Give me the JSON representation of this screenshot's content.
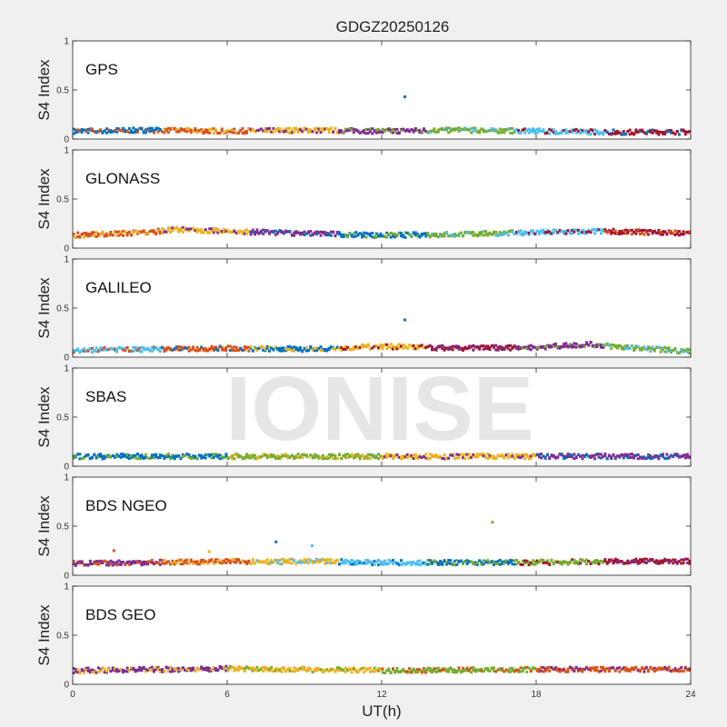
{
  "chart_data": {
    "type": "scatter",
    "title": "GDGZ20250126",
    "watermark": "IONISE",
    "xlabel": "UT(h)",
    "ylabel": "S4 Index",
    "xlim": [
      0,
      24
    ],
    "ylim": [
      0,
      1
    ],
    "x_ticks": [
      "0",
      "6",
      "12",
      "18",
      "24"
    ],
    "y_ticks": [
      "0",
      "0.5",
      "1"
    ],
    "grid": false,
    "colors": {
      "background": "#f0f0f0",
      "axes_background": "#ffffff",
      "axis": "#262626",
      "palette": [
        "#0072BD",
        "#D95319",
        "#EDB120",
        "#7E2F8E",
        "#77AC30",
        "#4DBEEE",
        "#A2142F"
      ]
    },
    "panels": [
      {
        "name": "GPS",
        "colors": [
          "#0072BD",
          "#D95319",
          "#EDB120",
          "#7E2F8E",
          "#77AC30",
          "#4DBEEE",
          "#A2142F"
        ],
        "baseline": [
          [
            0,
            0.08
          ],
          [
            3,
            0.09
          ],
          [
            6,
            0.08
          ],
          [
            9,
            0.09
          ],
          [
            12,
            0.08
          ],
          [
            15,
            0.09
          ],
          [
            18,
            0.08
          ],
          [
            21,
            0.07
          ],
          [
            24,
            0.07
          ]
        ],
        "outliers": [
          [
            12.9,
            0.43,
            "#0072BD"
          ]
        ]
      },
      {
        "name": "GLONASS",
        "colors": [
          "#D95319",
          "#EDB120",
          "#7E2F8E",
          "#0072BD",
          "#77AC30",
          "#4DBEEE",
          "#A2142F"
        ],
        "baseline": [
          [
            0,
            0.13
          ],
          [
            3,
            0.16
          ],
          [
            4,
            0.19
          ],
          [
            6,
            0.17
          ],
          [
            9,
            0.15
          ],
          [
            12,
            0.13
          ],
          [
            15,
            0.14
          ],
          [
            18,
            0.16
          ],
          [
            21,
            0.17
          ],
          [
            24,
            0.15
          ]
        ],
        "outliers": []
      },
      {
        "name": "GALILEO",
        "colors": [
          "#4DBEEE",
          "#D95319",
          "#0072BD",
          "#EDB120",
          "#A2142F",
          "#7E2F8E",
          "#77AC30"
        ],
        "baseline": [
          [
            0,
            0.07
          ],
          [
            3,
            0.08
          ],
          [
            6,
            0.09
          ],
          [
            9,
            0.08
          ],
          [
            12,
            0.11
          ],
          [
            15,
            0.09
          ],
          [
            18,
            0.1
          ],
          [
            20,
            0.13
          ],
          [
            22,
            0.09
          ],
          [
            24,
            0.06
          ]
        ],
        "outliers": [
          [
            12.9,
            0.38,
            "#0072BD"
          ]
        ]
      },
      {
        "name": "SBAS",
        "colors": [
          "#0072BD",
          "#77AC30",
          "#EDB120",
          "#7E2F8E"
        ],
        "baseline": [
          [
            0,
            0.1
          ],
          [
            6,
            0.1
          ],
          [
            12,
            0.1
          ],
          [
            18,
            0.1
          ],
          [
            24,
            0.1
          ]
        ],
        "outliers": []
      },
      {
        "name": "BDS NGEO",
        "colors": [
          "#7E2F8E",
          "#D95319",
          "#EDB120",
          "#4DBEEE",
          "#0072BD",
          "#77AC30",
          "#A2142F"
        ],
        "baseline": [
          [
            0,
            0.12
          ],
          [
            3,
            0.13
          ],
          [
            6,
            0.14
          ],
          [
            9,
            0.14
          ],
          [
            12,
            0.13
          ],
          [
            15,
            0.13
          ],
          [
            18,
            0.13
          ],
          [
            21,
            0.14
          ],
          [
            24,
            0.14
          ]
        ],
        "outliers": [
          [
            1.6,
            0.25,
            "#D95319"
          ],
          [
            5.3,
            0.24,
            "#EDB120"
          ],
          [
            7.9,
            0.34,
            "#0072BD"
          ],
          [
            9.3,
            0.3,
            "#4DBEEE"
          ],
          [
            16.3,
            0.54,
            "#77AC30"
          ]
        ]
      },
      {
        "name": "BDS GEO",
        "colors": [
          "#7E2F8E",
          "#EDB120",
          "#77AC30",
          "#D95319"
        ],
        "baseline": [
          [
            0,
            0.14
          ],
          [
            6,
            0.16
          ],
          [
            12,
            0.14
          ],
          [
            18,
            0.15
          ],
          [
            24,
            0.15
          ]
        ],
        "outliers": []
      }
    ]
  }
}
